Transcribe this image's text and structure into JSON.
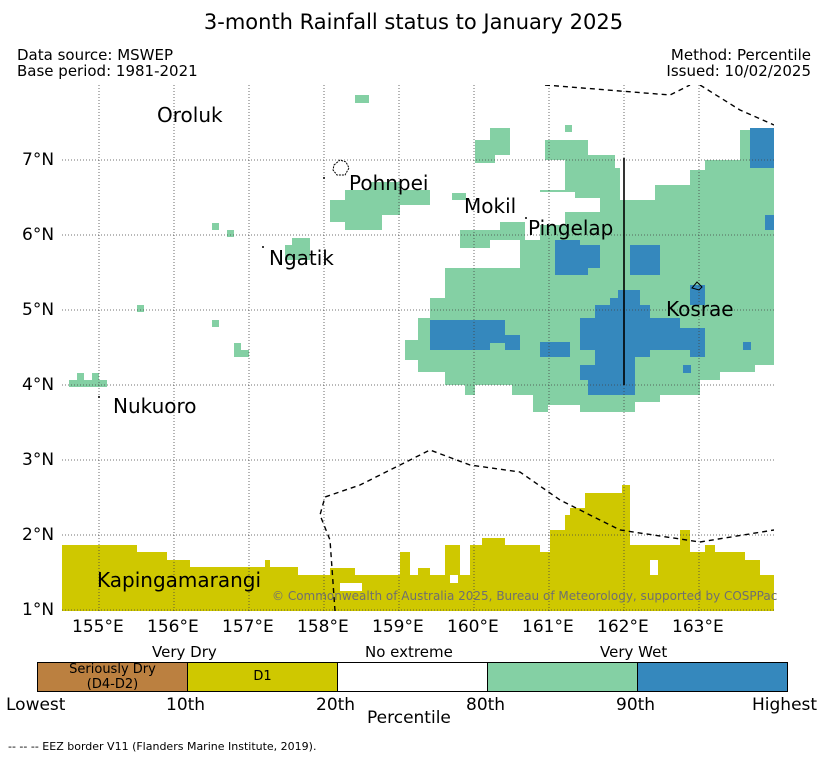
{
  "title": "3-month Rainfall status to January 2025",
  "header": {
    "data_source": "Data source: MSWEP",
    "base_period": "Base period: 1981-2021",
    "method": "Method: Percentile",
    "issued": "Issued: 10/02/2025"
  },
  "map": {
    "lon_range": [
      154.5,
      164.0
    ],
    "lat_range": [
      0.85,
      8.0
    ],
    "lon_ticks": [
      "155°E",
      "156°E",
      "157°E",
      "158°E",
      "159°E",
      "160°E",
      "161°E",
      "162°E",
      "163°E"
    ],
    "lat_ticks": [
      "1°N",
      "2°N",
      "3°N",
      "4°N",
      "5°N",
      "6°N",
      "7°N"
    ],
    "places": {
      "oroluk": "Oroluk",
      "pohnpei": "Pohnpei",
      "mokil": "Mokil",
      "pingelap": "Pingelap",
      "ngatik": "Ngatik",
      "kosrae": "Kosrae",
      "nukuoro": "Nukuoro",
      "kapingamarangi": "Kapingamarangi"
    },
    "copyright": "© Commonwealth of Australia 2025, Bureau of Meteorology, supported by COSPPac",
    "colors": {
      "seriously_dry": "#bb8040",
      "d1": "#cfc800",
      "no_extreme": "#ffffff",
      "very_wet": "#84d0a4",
      "highest": "#3588bd"
    }
  },
  "legend": {
    "categories": {
      "very_dry": "Very Dry",
      "no_extreme": "No extreme",
      "very_wet": "Very Wet"
    },
    "boxes": {
      "seriously_dry": "Seriously Dry\n(D4-D2)",
      "d1": "D1"
    },
    "ticks": [
      "Lowest",
      "10th",
      "20th",
      "80th",
      "90th",
      "Highest"
    ],
    "axis_label": "Percentile"
  },
  "footnote": "-- -- -- EEZ border V11 (Flanders Marine Institute, 2019)."
}
